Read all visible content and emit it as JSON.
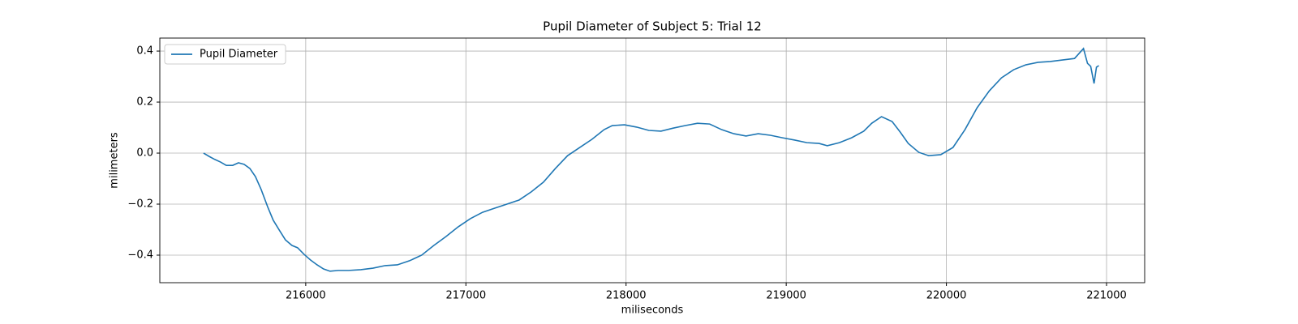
{
  "chart_data": {
    "type": "line",
    "title": "Pupil Diameter of Subject 5: Trial 12",
    "x_label": "miliseconds",
    "y_label": "milimeters",
    "xlim": [
      215089,
      221238
    ],
    "ylim": [
      -0.508,
      0.451
    ],
    "xticks": [
      216000,
      217000,
      218000,
      219000,
      220000,
      221000
    ],
    "yticks": [
      {
        "value": -0.4,
        "label": "−0.4"
      },
      {
        "value": -0.2,
        "label": "−0.2"
      },
      {
        "value": 0,
        "label": "0.0"
      },
      0.2,
      0.4
    ],
    "grid": true,
    "legend": "upper left",
    "x": [
      215362,
      215397,
      215433,
      215468,
      215504,
      215544,
      215580,
      215615,
      215651,
      215686,
      215722,
      215762,
      215797,
      215838,
      215873,
      215914,
      215949,
      215990,
      216030,
      216071,
      216111,
      216152,
      216203,
      216268,
      216344,
      216420,
      216496,
      216572,
      216648,
      216724,
      216800,
      216876,
      216952,
      217028,
      217104,
      217180,
      217256,
      217332,
      217408,
      217484,
      217559,
      217635,
      217711,
      217787,
      217863,
      217914,
      217990,
      218066,
      218142,
      218218,
      218294,
      218370,
      218446,
      218522,
      218597,
      218673,
      218749,
      218825,
      218901,
      218977,
      219053,
      219129,
      219205,
      219256,
      219332,
      219408,
      219484,
      219534,
      219595,
      219661,
      219711,
      219762,
      219828,
      219889,
      219965,
      220041,
      220116,
      220192,
      220268,
      220344,
      220420,
      220496,
      220572,
      220648,
      220724,
      220800,
      220856,
      220881,
      220901,
      220922,
      220937,
      220952
    ],
    "series": [
      {
        "name": "Pupil Diameter",
        "color": "#1f77b4",
        "values": [
          0.0,
          -0.013,
          -0.025,
          -0.035,
          -0.048,
          -0.048,
          -0.038,
          -0.044,
          -0.06,
          -0.092,
          -0.143,
          -0.21,
          -0.263,
          -0.305,
          -0.34,
          -0.362,
          -0.371,
          -0.397,
          -0.419,
          -0.438,
          -0.454,
          -0.463,
          -0.46,
          -0.46,
          -0.457,
          -0.451,
          -0.441,
          -0.438,
          -0.422,
          -0.4,
          -0.362,
          -0.327,
          -0.289,
          -0.257,
          -0.232,
          -0.216,
          -0.2,
          -0.184,
          -0.152,
          -0.114,
          -0.06,
          -0.01,
          0.022,
          0.054,
          0.092,
          0.108,
          0.111,
          0.102,
          0.089,
          0.086,
          0.098,
          0.108,
          0.117,
          0.114,
          0.092,
          0.076,
          0.067,
          0.076,
          0.07,
          0.06,
          0.051,
          0.041,
          0.038,
          0.029,
          0.041,
          0.06,
          0.086,
          0.117,
          0.143,
          0.124,
          0.083,
          0.038,
          0.003,
          -0.01,
          -0.006,
          0.022,
          0.092,
          0.178,
          0.244,
          0.295,
          0.327,
          0.346,
          0.356,
          0.359,
          0.365,
          0.371,
          0.41,
          0.352,
          0.34,
          0.273,
          0.337,
          0.343
        ]
      }
    ]
  }
}
